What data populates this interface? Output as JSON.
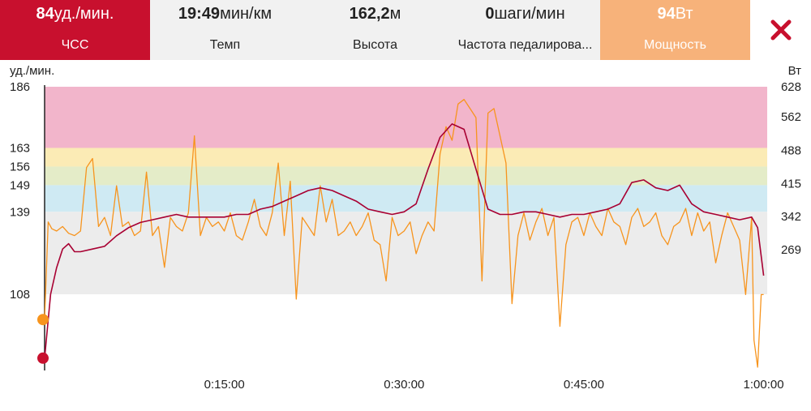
{
  "header": {
    "metrics": [
      {
        "value": "84",
        "unit": "уд./мин.",
        "label": "ЧСС",
        "active": true
      },
      {
        "value": "19:49",
        "unit": "мин/км",
        "label": "Темп"
      },
      {
        "value": "162,2",
        "unit": "м",
        "label": "Высота"
      },
      {
        "value": "0",
        "unit": "шаги/мин",
        "label": "Частота педалирова..."
      },
      {
        "value": "94",
        "unit": "Вт",
        "label": "Мощность",
        "active": true
      }
    ],
    "close_icon": "close-x-icon"
  },
  "colors": {
    "hr_active_bg": "#c8102e",
    "power_active_bg": "#f7b27a",
    "hr_line": "#a80032",
    "power_line": "#f7941d",
    "zone5": "#f2b5cb",
    "zone4": "#fbebb5",
    "zone3": "#e4ecc8",
    "zone2": "#cfeaf3",
    "zone1": "#ececec"
  },
  "chart_data": {
    "type": "line",
    "xlabel": "",
    "ylabel_left": "уд./мин.",
    "ylabel_right": "Вт",
    "x_ticks": [
      "0:15:00",
      "0:30:00",
      "0:45:00",
      "1:00:00"
    ],
    "x_tick_minutes": [
      15,
      30,
      45,
      60
    ],
    "xlim_minutes": [
      0,
      60.3
    ],
    "y_left_ticks": [
      186,
      163,
      156,
      149,
      139,
      108
    ],
    "y_right_ticks": [
      628,
      562,
      488,
      415,
      342,
      269
    ],
    "hr_zones": [
      {
        "from": 163,
        "to": 186,
        "color": "#f2b5cb"
      },
      {
        "from": 156,
        "to": 163,
        "color": "#fbebb5"
      },
      {
        "from": 149,
        "to": 156,
        "color": "#e4ecc8"
      },
      {
        "from": 139,
        "to": 149,
        "color": "#cfeaf3"
      },
      {
        "from": 108,
        "to": 139,
        "color": "#ececec"
      }
    ],
    "series": [
      {
        "name": "ЧСС",
        "axis": "left",
        "unit": "уд./мин.",
        "color": "#a80032",
        "x": [
          0,
          0.5,
          1,
          1.5,
          2,
          2.5,
          3,
          4,
          5,
          6,
          7,
          8,
          9,
          10,
          11,
          12,
          13,
          14,
          15,
          16,
          17,
          18,
          19,
          20,
          21,
          22,
          23,
          24,
          25,
          26,
          27,
          28,
          29,
          30,
          31,
          32,
          33,
          34,
          35,
          36,
          37,
          38,
          39,
          40,
          41,
          42,
          43,
          44,
          45,
          46,
          47,
          48,
          49,
          50,
          51,
          52,
          53,
          54,
          55,
          56,
          57,
          58,
          59,
          59.5,
          60
        ],
        "values": [
          84,
          108,
          118,
          125,
          127,
          124,
          124,
          125,
          126,
          130,
          133,
          135,
          136,
          137,
          138,
          137,
          137,
          137,
          137,
          138,
          138,
          140,
          141,
          143,
          145,
          147,
          148,
          147,
          145,
          143,
          140,
          139,
          138,
          139,
          142,
          155,
          167,
          172,
          170,
          155,
          140,
          138,
          138,
          139,
          139,
          138,
          137,
          138,
          138,
          139,
          140,
          142,
          150,
          151,
          148,
          147,
          149,
          142,
          139,
          138,
          137,
          136,
          137,
          133,
          115
        ]
      },
      {
        "name": "Мощность",
        "axis": "right",
        "unit": "Вт",
        "color": "#f7941d",
        "x": [
          0,
          0.3,
          0.6,
          1,
          1.5,
          2,
          2.5,
          3,
          3.5,
          4,
          4.5,
          5,
          5.5,
          6,
          6.5,
          7,
          7.5,
          8,
          8.5,
          9,
          9.5,
          10,
          10.5,
          11,
          11.5,
          12,
          12.5,
          13,
          13.5,
          14,
          14.5,
          15,
          15.5,
          16,
          16.5,
          17,
          17.5,
          18,
          18.5,
          19,
          19.5,
          20,
          20.5,
          21,
          21.5,
          22,
          22.5,
          23,
          23.5,
          24,
          24.5,
          25,
          25.5,
          26,
          26.5,
          27,
          27.5,
          28,
          28.5,
          29,
          29.5,
          30,
          30.5,
          31,
          31.5,
          32,
          32.5,
          33,
          33.5,
          34,
          34.5,
          35,
          35.5,
          36,
          36.5,
          37,
          37.5,
          38,
          38.5,
          39,
          39.5,
          40,
          40.5,
          41,
          41.5,
          42,
          42.5,
          43,
          43.5,
          44,
          44.5,
          45,
          45.5,
          46,
          46.5,
          47,
          47.5,
          48,
          48.5,
          49,
          49.5,
          50,
          50.5,
          51,
          51.5,
          52,
          52.5,
          53,
          53.5,
          54,
          54.5,
          55,
          55.5,
          56,
          56.5,
          57,
          57.5,
          58,
          58.5,
          59,
          59.2,
          59.5,
          59.8,
          60
        ],
        "values": [
          115,
          330,
          315,
          310,
          320,
          305,
          300,
          310,
          450,
          470,
          320,
          340,
          300,
          410,
          320,
          330,
          300,
          310,
          440,
          300,
          320,
          230,
          340,
          320,
          310,
          350,
          520,
          300,
          340,
          320,
          330,
          310,
          350,
          300,
          290,
          330,
          380,
          320,
          300,
          350,
          460,
          300,
          420,
          160,
          340,
          320,
          300,
          410,
          330,
          380,
          300,
          310,
          330,
          300,
          320,
          350,
          290,
          280,
          200,
          340,
          300,
          310,
          330,
          260,
          300,
          330,
          310,
          480,
          540,
          510,
          590,
          600,
          580,
          560,
          200,
          570,
          580,
          520,
          460,
          150,
          300,
          350,
          290,
          330,
          360,
          300,
          340,
          100,
          280,
          330,
          340,
          300,
          350,
          320,
          300,
          360,
          330,
          320,
          280,
          340,
          360,
          320,
          330,
          350,
          300,
          280,
          320,
          330,
          360,
          300,
          350,
          310,
          330,
          240,
          300,
          350,
          320,
          290,
          170,
          340,
          70,
          10,
          170,
          170
        ]
      }
    ]
  }
}
